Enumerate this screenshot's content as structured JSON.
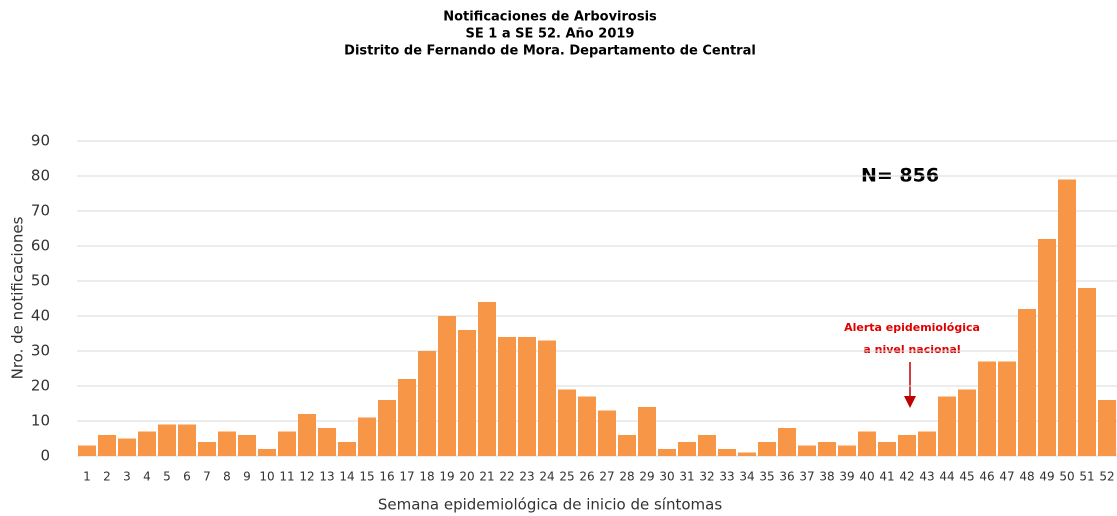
{
  "chart_data": {
    "type": "bar",
    "title": [
      "Notificaciones de Arbovirosis",
      "SE 1 a SE 52. Año 2019",
      "Distrito de Fernando de Mora. Departamento de Central"
    ],
    "annotations": [
      "N= 856",
      "Alerta epidemiológica",
      "a nivel nacional"
    ],
    "x_label": "Semana epidemiológica de inicio de síntomas",
    "y_label": "Nro. de notificaciones",
    "categories": [
      "1",
      "2",
      "3",
      "4",
      "5",
      "6",
      "7",
      "8",
      "9",
      "10",
      "11",
      "12",
      "13",
      "14",
      "15",
      "16",
      "17",
      "18",
      "19",
      "20",
      "21",
      "22",
      "23",
      "24",
      "25",
      "26",
      "27",
      "28",
      "29",
      "30",
      "31",
      "32",
      "33",
      "34",
      "35",
      "36",
      "37",
      "38",
      "39",
      "40",
      "41",
      "42",
      "43",
      "44",
      "45",
      "46",
      "47",
      "48",
      "49",
      "50",
      "51",
      "52"
    ],
    "values": [
      3,
      6,
      5,
      7,
      9,
      9,
      4,
      7,
      6,
      2,
      7,
      12,
      8,
      4,
      11,
      16,
      22,
      30,
      40,
      36,
      44,
      34,
      34,
      33,
      19,
      17,
      13,
      6,
      14,
      2,
      4,
      6,
      2,
      1,
      4,
      8,
      3,
      4,
      3,
      7,
      4,
      6,
      7,
      17,
      19,
      27,
      27,
      42,
      62,
      79,
      48,
      16
    ],
    "color": "#f79646",
    "ylim": [
      0,
      90
    ],
    "yticks": [
      0,
      10,
      20,
      30,
      40,
      50,
      60,
      70,
      80,
      90
    ],
    "grid": true
  }
}
